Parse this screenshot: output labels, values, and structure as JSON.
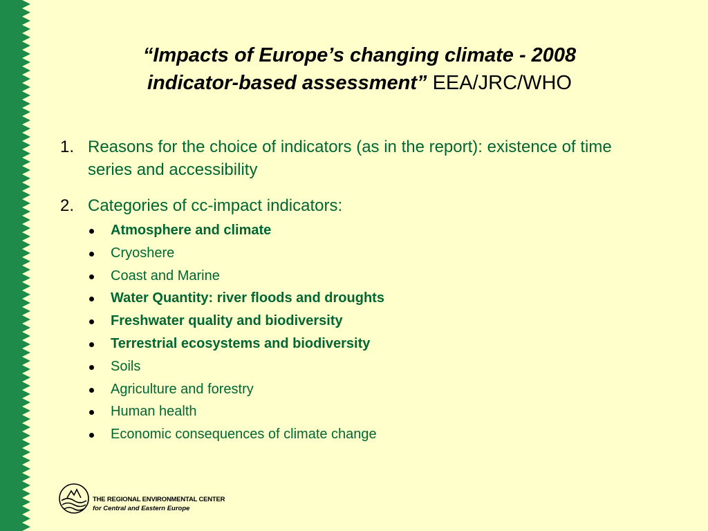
{
  "title": {
    "quote_open": "“",
    "italic_part_line1": "Impacts of Europe’s changing climate - 2008",
    "italic_part_line2": "indicator-based assessment”",
    "plain_part": " EEA/JRC/WHO"
  },
  "items": [
    {
      "number": "1.",
      "text": "Reasons for the choice of indicators (as in the report): existence of time series and accessibility"
    },
    {
      "number": "2.",
      "text": "Categories of cc-impact indicators:"
    }
  ],
  "categories": [
    {
      "label": "Atmosphere and climate",
      "bold": true
    },
    {
      "label": "Cryoshere",
      "bold": false
    },
    {
      "label": "Coast and Marine",
      "bold": false
    },
    {
      "label": "Water Quantity: river floods and droughts",
      "bold": true
    },
    {
      "label": "Freshwater quality and biodiversity",
      "bold": true
    },
    {
      "label": "Terrestrial ecosystems and biodiversity",
      "bold": true
    },
    {
      "label": "Soils",
      "bold": false
    },
    {
      "label": "Agriculture and forestry",
      "bold": false
    },
    {
      "label": "Human health",
      "bold": false
    },
    {
      "label": "Economic consequences of climate change",
      "bold": false
    }
  ],
  "logo": {
    "line1": "THE REGIONAL ENVIRONMENTAL CENTER",
    "line2": "for Central and Eastern Europe"
  },
  "colors": {
    "background": "#FFFFCC",
    "text_green": "#006633",
    "border_green": "#1E8B4B"
  }
}
